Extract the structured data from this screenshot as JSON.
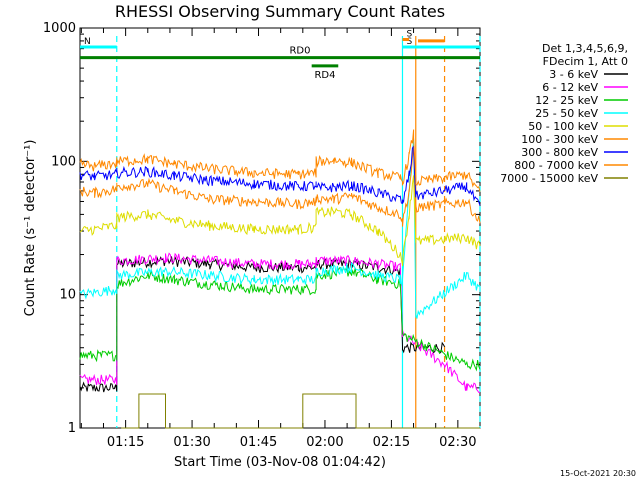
{
  "chart_data": {
    "type": "line",
    "title": "RHESSI Observing Summary Count Rates",
    "xlabel": "Start Time (03-Nov-08 01:04:42)",
    "ylabel": "Count Rate (s⁻¹ detector⁻¹)",
    "yscale": "log",
    "ylim": [
      1,
      1000
    ],
    "xlim_minutes": [
      64.7,
      155
    ],
    "x_ticks": [
      {
        "m": 75,
        "label": "01:15"
      },
      {
        "m": 90,
        "label": "01:30"
      },
      {
        "m": 105,
        "label": "01:45"
      },
      {
        "m": 120,
        "label": "02:00"
      },
      {
        "m": 135,
        "label": "02:15"
      },
      {
        "m": 150,
        "label": "02:30"
      }
    ],
    "y_ticks": [
      {
        "v": 1,
        "label": "1"
      },
      {
        "v": 10,
        "label": "10"
      },
      {
        "v": 100,
        "label": "100"
      },
      {
        "v": 1000,
        "label": "1000"
      }
    ],
    "legend_position": "right",
    "legend_header": [
      "Det 1,3,4,5,6,9,",
      "FDecim 1, Att 0"
    ],
    "series": [
      {
        "name": "3 - 6 keV",
        "color": "#000000",
        "pts": [
          [
            64.7,
            2
          ],
          [
            73,
            2
          ],
          [
            73,
            17
          ],
          [
            84,
            18
          ],
          [
            94,
            17
          ],
          [
            104,
            16
          ],
          [
            114,
            16
          ],
          [
            118,
            16
          ],
          [
            118,
            17
          ],
          [
            126,
            17
          ],
          [
            132,
            16
          ],
          [
            137,
            15
          ],
          [
            137.5,
            4
          ],
          [
            147,
            4
          ]
        ]
      },
      {
        "name": "6 - 12 keV",
        "color": "#ff00ff",
        "pts": [
          [
            64.7,
            2.3
          ],
          [
            73,
            2.3
          ],
          [
            73,
            18
          ],
          [
            84,
            19
          ],
          [
            94,
            18
          ],
          [
            104,
            17
          ],
          [
            114,
            17
          ],
          [
            118,
            17
          ],
          [
            118,
            18
          ],
          [
            126,
            18
          ],
          [
            132,
            17
          ],
          [
            137,
            16
          ],
          [
            137.5,
            5
          ],
          [
            147,
            3
          ],
          [
            152,
            2
          ],
          [
            155,
            2
          ]
        ]
      },
      {
        "name": "12 - 25 keV",
        "color": "#00cc00",
        "pts": [
          [
            64.7,
            3.5
          ],
          [
            73,
            3.5
          ],
          [
            73,
            12
          ],
          [
            80,
            14
          ],
          [
            86,
            13
          ],
          [
            94,
            12
          ],
          [
            104,
            11
          ],
          [
            114,
            11
          ],
          [
            118,
            11
          ],
          [
            118,
            14
          ],
          [
            126,
            15
          ],
          [
            132,
            13
          ],
          [
            137,
            12
          ],
          [
            137.5,
            5
          ],
          [
            152,
            3
          ],
          [
            155,
            3
          ]
        ]
      },
      {
        "name": "25 - 50 keV",
        "color": "#00ffff",
        "pts": [
          [
            64.7,
            10
          ],
          [
            73,
            11
          ],
          [
            73,
            14
          ],
          [
            84,
            15
          ],
          [
            94,
            14
          ],
          [
            104,
            13
          ],
          [
            114,
            13
          ],
          [
            118,
            13
          ],
          [
            118,
            15
          ],
          [
            126,
            16
          ],
          [
            132,
            14
          ],
          [
            137,
            13
          ],
          [
            137.5,
            12
          ],
          [
            139,
            60
          ],
          [
            140,
            150
          ],
          [
            140.5,
            7
          ],
          [
            152,
            14
          ],
          [
            155,
            11
          ]
        ]
      },
      {
        "name": "50 - 100 keV",
        "color": "#dddd00",
        "pts": [
          [
            64.7,
            30
          ],
          [
            68,
            31
          ],
          [
            73,
            33
          ],
          [
            73,
            38
          ],
          [
            80,
            40
          ],
          [
            86,
            36
          ],
          [
            94,
            33
          ],
          [
            104,
            31
          ],
          [
            114,
            31
          ],
          [
            118,
            32
          ],
          [
            118,
            41
          ],
          [
            122,
            42
          ],
          [
            126,
            40
          ],
          [
            132,
            30
          ],
          [
            137,
            20
          ],
          [
            137.5,
            18
          ],
          [
            139,
            40
          ],
          [
            140,
            80
          ],
          [
            140.5,
            25
          ],
          [
            152,
            27
          ],
          [
            155,
            23
          ]
        ]
      },
      {
        "name": "100 - 300 keV",
        "color": "#ff8800",
        "pts": [
          [
            64.7,
            60
          ],
          [
            68,
            58
          ],
          [
            73,
            62
          ],
          [
            73,
            65
          ],
          [
            80,
            68
          ],
          [
            86,
            60
          ],
          [
            94,
            52
          ],
          [
            104,
            50
          ],
          [
            114,
            48
          ],
          [
            118,
            50
          ],
          [
            118,
            53
          ],
          [
            122,
            52
          ],
          [
            126,
            55
          ],
          [
            132,
            45
          ],
          [
            137,
            40
          ],
          [
            137.5,
            35
          ],
          [
            139,
            60
          ],
          [
            140,
            120
          ],
          [
            140.5,
            45
          ],
          [
            152,
            50
          ],
          [
            155,
            35
          ]
        ]
      },
      {
        "name": "300 - 800 keV",
        "color": "#0000ff",
        "pts": [
          [
            64.7,
            80
          ],
          [
            68,
            77
          ],
          [
            73,
            80
          ],
          [
            73,
            82
          ],
          [
            80,
            84
          ],
          [
            86,
            78
          ],
          [
            94,
            72
          ],
          [
            104,
            68
          ],
          [
            114,
            65
          ],
          [
            118,
            66
          ],
          [
            118,
            63
          ],
          [
            122,
            64
          ],
          [
            126,
            66
          ],
          [
            132,
            58
          ],
          [
            137,
            52
          ],
          [
            137.5,
            48
          ],
          [
            139,
            80
          ],
          [
            140,
            130
          ],
          [
            140.5,
            55
          ],
          [
            152,
            65
          ],
          [
            155,
            45
          ]
        ]
      },
      {
        "name": "800 - 7000 keV",
        "color": "#ff8800",
        "pts": [
          [
            64.7,
            95
          ],
          [
            68,
            92
          ],
          [
            73,
            97
          ],
          [
            73,
            100
          ],
          [
            80,
            104
          ],
          [
            86,
            96
          ],
          [
            94,
            88
          ],
          [
            104,
            82
          ],
          [
            114,
            80
          ],
          [
            118,
            82
          ],
          [
            118,
            100
          ],
          [
            122,
            102
          ],
          [
            126,
            98
          ],
          [
            132,
            82
          ],
          [
            137,
            75
          ],
          [
            137.5,
            70
          ],
          [
            139,
            110
          ],
          [
            140,
            160
          ],
          [
            140.5,
            70
          ],
          [
            152,
            80
          ],
          [
            155,
            58
          ]
        ]
      },
      {
        "name": "7000 - 15000 keV",
        "color": "#808000",
        "pts": [
          [
            74,
            1
          ],
          [
            78,
            1
          ],
          [
            78,
            1.8
          ],
          [
            84,
            1.8
          ],
          [
            84,
            1
          ],
          [
            115,
            1
          ],
          [
            115,
            1.8
          ],
          [
            127,
            1.8
          ],
          [
            127,
            1
          ],
          [
            155,
            1
          ]
        ]
      }
    ],
    "annotations": {
      "bars": [
        {
          "label": "N",
          "color": "#00ffff",
          "m0": 64.7,
          "m1": 73,
          "y": 720
        },
        {
          "label": "S",
          "color": "#00ffff",
          "m0": 137.5,
          "m1": 155,
          "y": 720
        },
        {
          "label": "",
          "color": "#ff8800",
          "m0": 141,
          "m1": 147,
          "y": 800
        },
        {
          "label": "S",
          "color": "#ff8800",
          "m0": 137.5,
          "m1": 139,
          "y": 820
        }
      ],
      "green_bars": [
        {
          "label": "RD0",
          "m0": 64.7,
          "m1": 155,
          "y": 600
        },
        {
          "label": "RD4",
          "m0": 117,
          "m1": 123,
          "y": 520
        }
      ],
      "vlines": [
        {
          "m": 73,
          "color": "#00ffff",
          "style": "dashed"
        },
        {
          "m": 137.5,
          "color": "#00ffff",
          "style": "solid"
        },
        {
          "m": 140.5,
          "color": "#ff8800",
          "style": "solid"
        },
        {
          "m": 147,
          "color": "#ff8800",
          "style": "dashed"
        },
        {
          "m": 155,
          "color": "#00ffff",
          "style": "dashed"
        }
      ]
    },
    "footer_timestamp": "15-Oct-2021 20:30"
  }
}
